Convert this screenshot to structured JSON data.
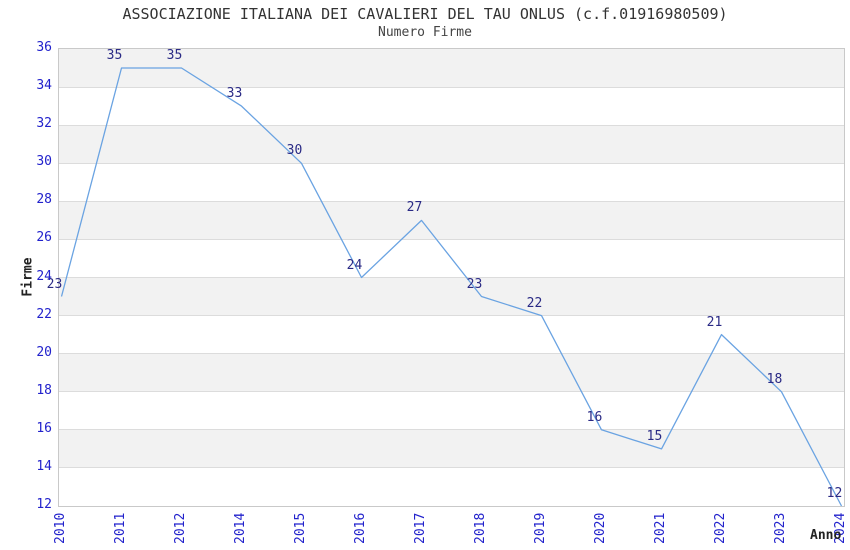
{
  "chart_data": {
    "type": "line",
    "title": "ASSOCIAZIONE ITALIANA DEI CAVALIERI DEL TAU ONLUS (c.f.01916980509)",
    "subtitle": "Numero Firme",
    "xlabel": "Anno",
    "ylabel": "Firme",
    "categories": [
      "2010",
      "2011",
      "2012",
      "2014",
      "2015",
      "2016",
      "2017",
      "2018",
      "2019",
      "2020",
      "2021",
      "2022",
      "2023",
      "2024"
    ],
    "values": [
      23,
      35,
      35,
      33,
      30,
      24,
      27,
      23,
      22,
      16,
      15,
      21,
      18,
      12
    ],
    "ylim": [
      12,
      36
    ],
    "ytick_step": 2,
    "grid": true,
    "legend": "none",
    "band_fill_alternating": true,
    "colors": {
      "line": "#6aa3e2",
      "data_label": "#2a2a85",
      "tick_label": "#2222cc",
      "band": "#f2f2f2",
      "gridline": "#dcdcdc",
      "border": "#c9c9c9",
      "title": "#333333",
      "subtitle": "#444444"
    }
  }
}
